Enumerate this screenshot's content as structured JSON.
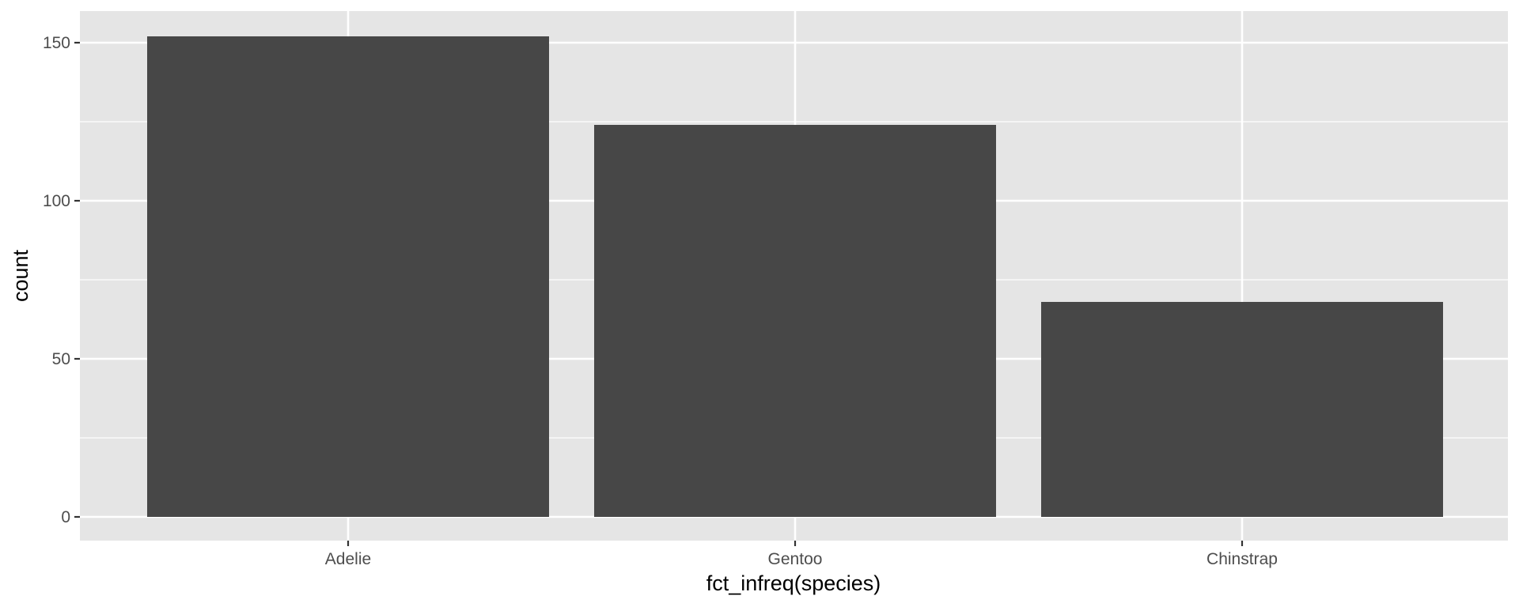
{
  "chart_data": {
    "type": "bar",
    "title": "",
    "xlabel": "fct_infreq(species)",
    "ylabel": "count",
    "categories": [
      "Adelie",
      "Gentoo",
      "Chinstrap"
    ],
    "values": [
      152,
      124,
      68
    ],
    "ylim": [
      0,
      160
    ],
    "y_ticks": [
      0,
      50,
      100,
      150
    ],
    "y_tick_labels": [
      "0",
      "50",
      "100",
      "150"
    ],
    "grid": true,
    "legend": "none",
    "colors": {
      "bar": "#474747",
      "panel": "#e5e5e5",
      "grid": "#ffffff"
    }
  }
}
